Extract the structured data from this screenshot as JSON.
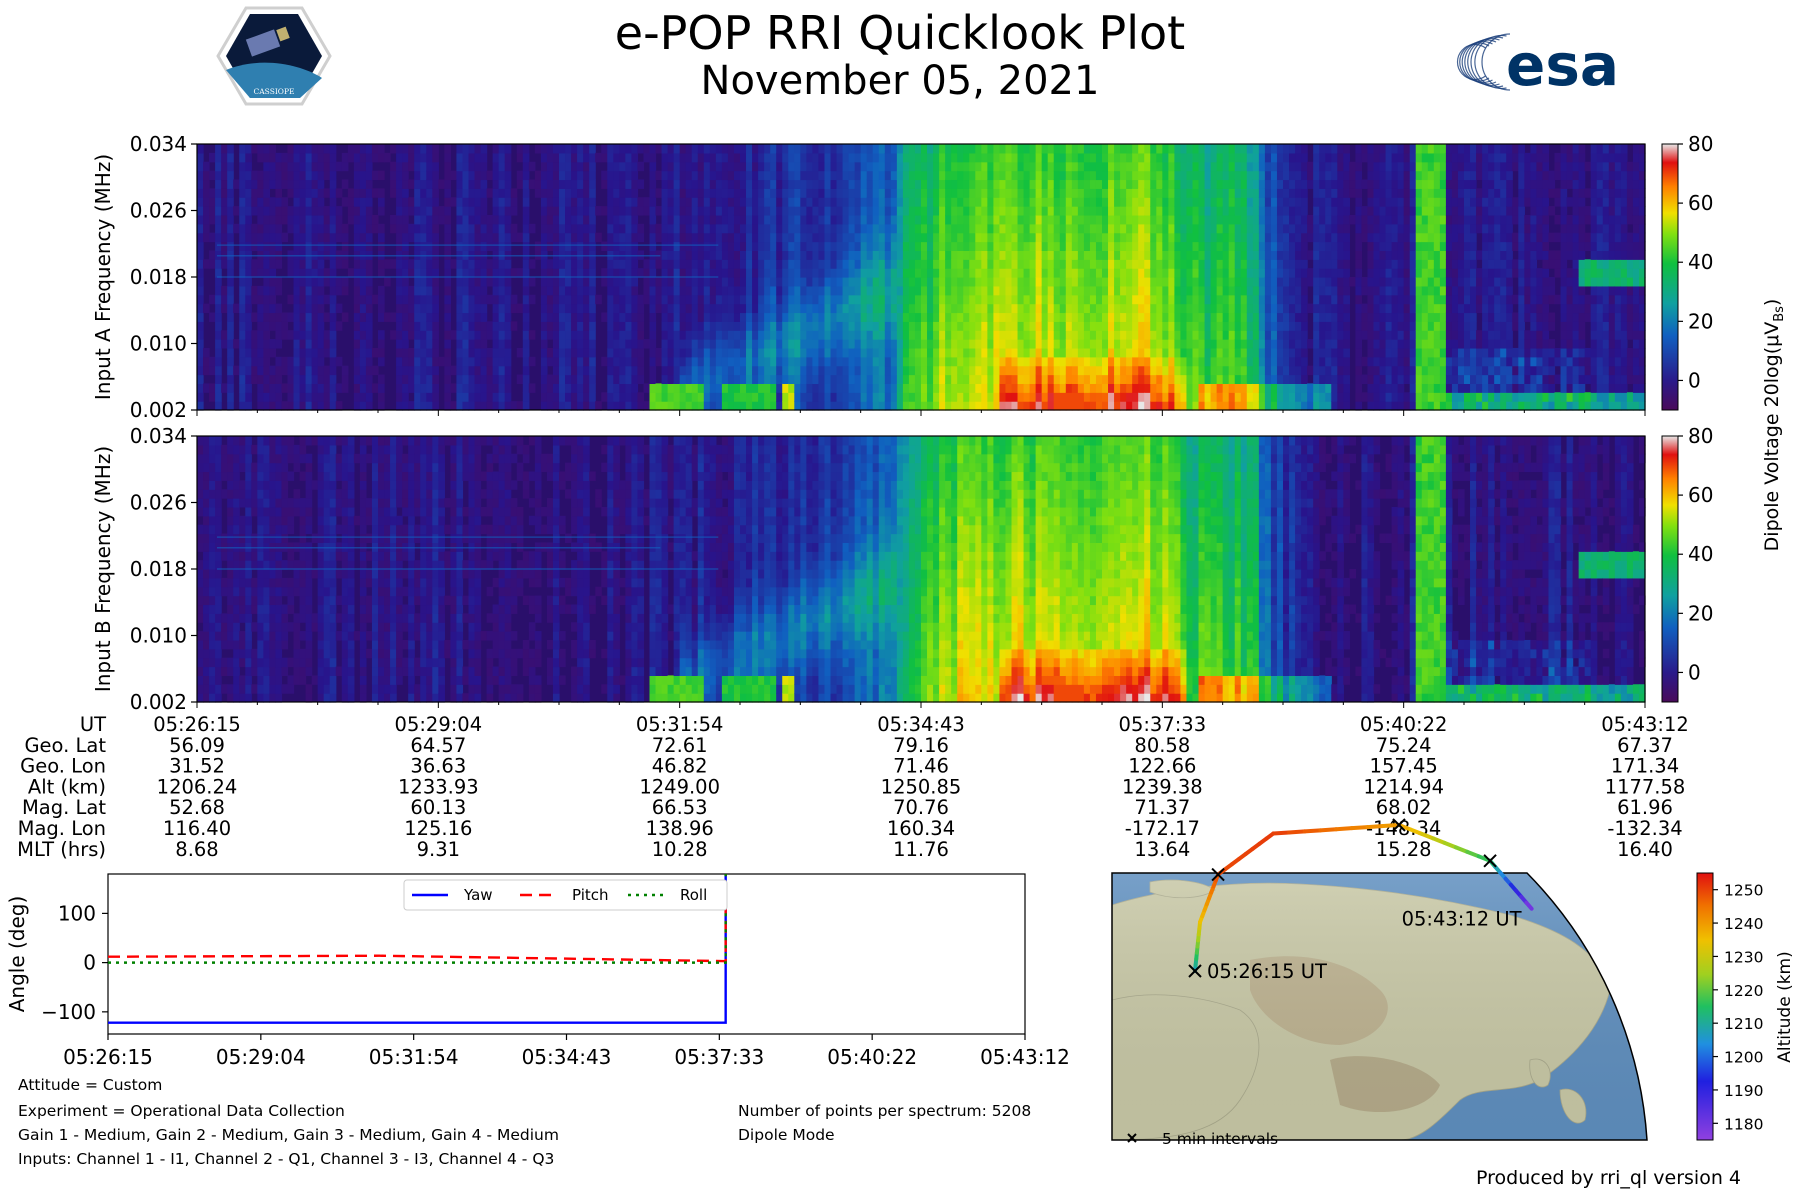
{
  "header": {
    "title": "e-POP RRI Quicklook Plot",
    "subtitle": "November 05, 2021",
    "logo_left_text": "CASSIOPE",
    "logo_right_text": "esa"
  },
  "colors": {
    "yaw": "#0000ff",
    "pitch": "#ff0000",
    "roll": "#008000",
    "spectrogram_background": "#2a0f6b",
    "ocean": "#5f8fbf",
    "land": "#c8c8a6"
  },
  "chart_data": [
    {
      "type": "heatmap",
      "panel": "input-a",
      "ylabel": "Input A Frequency (MHz)",
      "yticks": [
        "0.002",
        "0.010",
        "0.018",
        "0.026",
        "0.034"
      ],
      "ylim": [
        0.002,
        0.034
      ],
      "x_ticks_ut": [
        "05:26:15",
        "05:29:04",
        "05:31:54",
        "05:34:43",
        "05:37:33",
        "05:40:22",
        "05:43:12"
      ],
      "colorbar": {
        "ticks": [
          "80",
          "60",
          "40",
          "20",
          "0"
        ],
        "range": [
          -10,
          80
        ]
      }
    },
    {
      "type": "heatmap",
      "panel": "input-b",
      "ylabel": "Input B Frequency (MHz)",
      "yticks": [
        "0.002",
        "0.010",
        "0.018",
        "0.026",
        "0.034"
      ],
      "ylim": [
        0.002,
        0.034
      ],
      "colorbar": {
        "ticks": [
          "80",
          "60",
          "40",
          "20",
          "0"
        ],
        "range": [
          -10,
          80
        ]
      }
    },
    {
      "type": "table",
      "name": "ephemeris",
      "rows": [
        {
          "label": "UT",
          "values": [
            "05:26:15",
            "05:29:04",
            "05:31:54",
            "05:34:43",
            "05:37:33",
            "05:40:22",
            "05:43:12"
          ]
        },
        {
          "label": "Geo. Lat",
          "values": [
            "56.09",
            "64.57",
            "72.61",
            "79.16",
            "80.58",
            "75.24",
            "67.37"
          ]
        },
        {
          "label": "Geo. Lon",
          "values": [
            "31.52",
            "36.63",
            "46.82",
            "71.46",
            "122.66",
            "157.45",
            "171.34"
          ]
        },
        {
          "label": "Alt (km)",
          "values": [
            "1206.24",
            "1233.93",
            "1249.00",
            "1250.85",
            "1239.38",
            "1214.94",
            "1177.58"
          ]
        },
        {
          "label": "Mag. Lat",
          "values": [
            "52.68",
            "60.13",
            "66.53",
            "70.76",
            "71.37",
            "68.02",
            "61.96"
          ]
        },
        {
          "label": "Mag. Lon",
          "values": [
            "116.40",
            "125.16",
            "138.96",
            "160.34",
            "-172.17",
            "-148.34",
            "-132.34"
          ]
        },
        {
          "label": "MLT (hrs)",
          "values": [
            "8.68",
            "9.31",
            "10.28",
            "11.76",
            "13.64",
            "15.28",
            "16.40"
          ]
        }
      ]
    },
    {
      "type": "line",
      "name": "attitude",
      "ylabel": "Angle (deg)",
      "yticks": [
        "100",
        "0",
        "−100"
      ],
      "ylim": [
        -145,
        180
      ],
      "x_ticks": [
        "05:26:15",
        "05:29:04",
        "05:31:54",
        "05:34:43",
        "05:37:33",
        "05:40:22",
        "05:43:12"
      ],
      "x_seconds": [
        0,
        1014
      ],
      "jump_at_seconds": 683,
      "legend": [
        "Yaw",
        "Pitch",
        "Roll"
      ],
      "series": [
        {
          "name": "Yaw",
          "x": [
            0,
            683
          ],
          "values": [
            -122,
            -122
          ]
        },
        {
          "name": "Pitch",
          "x": [
            0,
            300,
            683
          ],
          "values": [
            12,
            14,
            3
          ]
        },
        {
          "name": "Roll",
          "x": [
            0,
            683
          ],
          "values": [
            0,
            0
          ]
        }
      ]
    },
    {
      "type": "scatter",
      "name": "orbit-track-map",
      "colorbar_label": "Altitude (km)",
      "colorbar_ticks": [
        "1250",
        "1240",
        "1230",
        "1220",
        "1210",
        "1200",
        "1190",
        "1180"
      ],
      "colorbar_range": [
        1175,
        1255
      ],
      "interval_markers_label": "5 min intervals",
      "start_label": "05:26:15 UT",
      "end_label": "05:43:12 UT",
      "track": [
        {
          "lat": 56.09,
          "lon": 31.52,
          "alt": 1206.24
        },
        {
          "lat": 64.57,
          "lon": 36.63,
          "alt": 1233.93
        },
        {
          "lat": 72.61,
          "lon": 46.82,
          "alt": 1249.0
        },
        {
          "lat": 79.16,
          "lon": 71.46,
          "alt": 1250.85
        },
        {
          "lat": 80.58,
          "lon": 122.66,
          "alt": 1239.38
        },
        {
          "lat": 75.24,
          "lon": 157.45,
          "alt": 1214.94
        },
        {
          "lat": 67.37,
          "lon": 171.34,
          "alt": 1177.58
        }
      ]
    }
  ],
  "colorbar_label": "Dipole Voltage 20log(μV",
  "colorbar_label_sub": "Bs",
  "colorbar_label_end": ")",
  "notes": {
    "attitude": "Attitude = Custom",
    "experiment": "Experiment = Operational Data Collection",
    "gains": "Gain 1 - Medium, Gain 2 - Medium, Gain 3 - Medium, Gain 4 - Medium",
    "inputs": "Inputs: Channel 1 - I1, Channel 2 - Q1, Channel 3 - I3, Channel 4 - Q3",
    "points": "Number of points per spectrum: 5208",
    "mode": "Dipole Mode"
  },
  "footer": {
    "produced": "Produced by rri_ql version 4"
  }
}
